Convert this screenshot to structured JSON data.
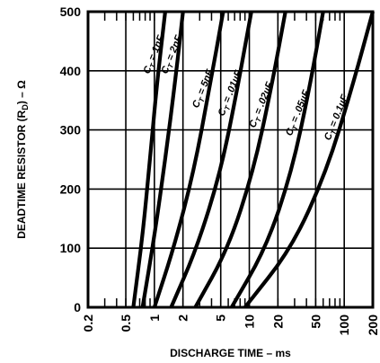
{
  "chart_data": {
    "type": "line",
    "xlabel": "DISCHARGE TIME  –  ms",
    "ylabel": "DEADTIME RESISTOR (R",
    "ylabel_sub": "D",
    "ylabel_tail": ")  –  Ω",
    "x_scale": "log",
    "xlim": [
      0.2,
      200
    ],
    "ylim": [
      0,
      500
    ],
    "x_ticks": [
      0.2,
      0.5,
      1,
      2,
      5,
      10,
      20,
      50,
      100,
      200
    ],
    "x_tick_labels": [
      "0.2",
      "0.5",
      "1",
      "2",
      "5",
      "10",
      "20",
      "50",
      "100",
      "200"
    ],
    "y_ticks": [
      0,
      100,
      200,
      300,
      400,
      500
    ],
    "y_tick_labels": [
      "0",
      "100",
      "200",
      "300",
      "400",
      "500"
    ],
    "grid": true,
    "series": [
      {
        "name": "C_T = 1nF",
        "x": [
          0.6,
          0.75,
          0.9,
          1.05,
          1.3
        ],
        "y": [
          0,
          120,
          250,
          370,
          500
        ]
      },
      {
        "name": "C_T = 2nF",
        "x": [
          0.75,
          1.0,
          1.3,
          1.65,
          2.0
        ],
        "y": [
          0,
          120,
          250,
          380,
          500
        ]
      },
      {
        "name": "C_T = 5nF",
        "x": [
          1.0,
          1.6,
          2.6,
          3.8,
          5.3
        ],
        "y": [
          0,
          100,
          230,
          370,
          500
        ]
      },
      {
        "name": "C_T = .01µF",
        "x": [
          1.5,
          2.8,
          5.0,
          7.5,
          10.5
        ],
        "y": [
          0,
          100,
          230,
          370,
          500
        ]
      },
      {
        "name": "C_T = .02µF",
        "x": [
          2.7,
          6.0,
          11.0,
          17.0,
          24.0
        ],
        "y": [
          0,
          100,
          230,
          370,
          500
        ]
      },
      {
        "name": "C_T = .05µF",
        "x": [
          6.5,
          15.0,
          28.0,
          43.0,
          60.0
        ],
        "y": [
          0,
          100,
          230,
          370,
          500
        ]
      },
      {
        "name": "C_T = 0.1µF",
        "x": [
          9.0,
          28.0,
          65.0,
          120.0,
          200.0
        ],
        "y": [
          0,
          100,
          230,
          370,
          500
        ]
      }
    ],
    "curve_labels": [
      {
        "series": 0,
        "text_pre": "C",
        "sub": "T",
        "text_post": " = 1nF"
      },
      {
        "series": 1,
        "text_pre": "C",
        "sub": "T",
        "text_post": " = 2nF"
      },
      {
        "series": 2,
        "text_pre": "C",
        "sub": "T",
        "text_post": " = 5nF"
      },
      {
        "series": 3,
        "text_pre": "C",
        "sub": "T",
        "text_post": " = .01µF"
      },
      {
        "series": 4,
        "text_pre": "C",
        "sub": "T",
        "text_post": " = .02µF"
      },
      {
        "series": 5,
        "text_pre": "C",
        "sub": "T",
        "text_post": " = .05µF"
      },
      {
        "series": 6,
        "text_pre": "C",
        "sub": "T",
        "text_post": " = 0.1µF"
      }
    ]
  }
}
